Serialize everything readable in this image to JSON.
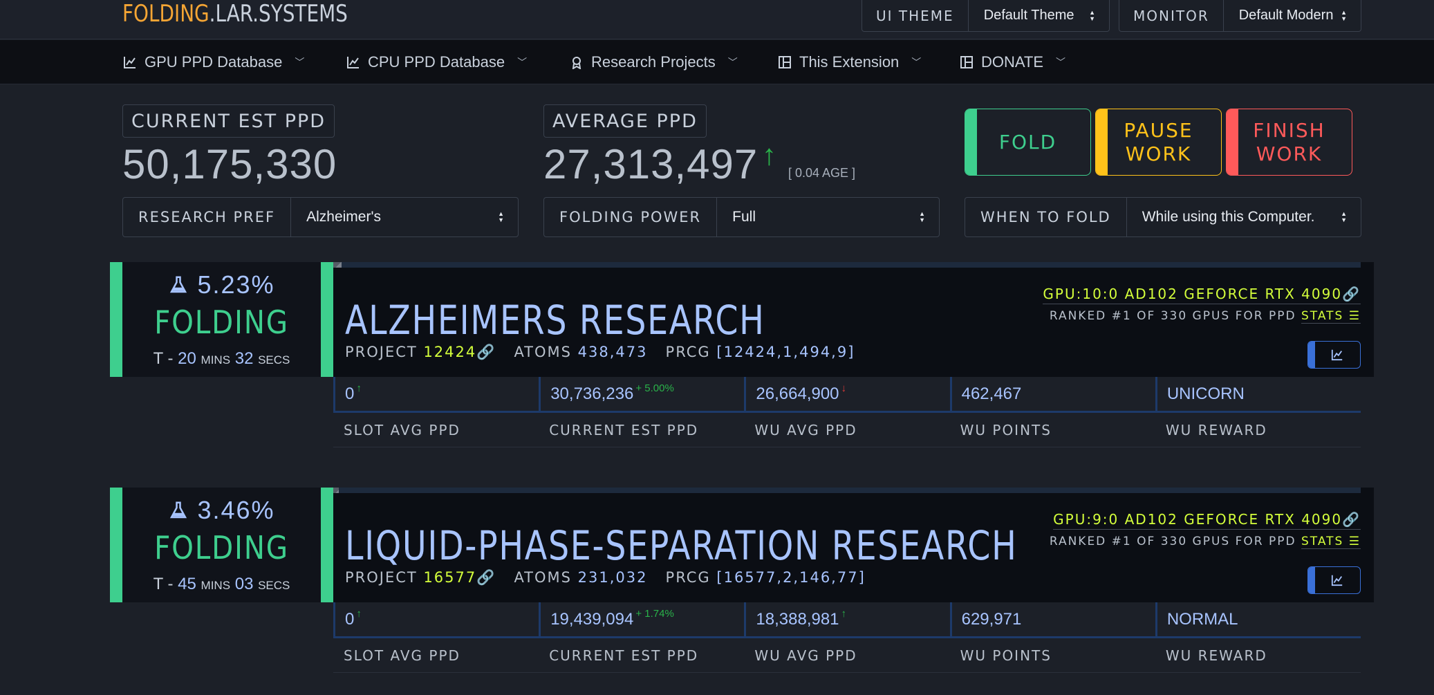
{
  "brand": {
    "part1": "FOLDING",
    "part2": ".LAR.SYSTEMS"
  },
  "top": {
    "theme_label": "UI THEME",
    "theme_value": "Default Theme",
    "monitor_label": "MONITOR",
    "monitor_value": "Default Modern"
  },
  "nav": [
    {
      "label": "GPU PPD Database",
      "icon": "chart-line-icon"
    },
    {
      "label": "CPU PPD Database",
      "icon": "chart-line-icon"
    },
    {
      "label": "Research Projects",
      "icon": "badge-icon"
    },
    {
      "label": "This Extension",
      "icon": "layout-icon"
    },
    {
      "label": "DONATE",
      "icon": "layout-icon"
    }
  ],
  "stats": {
    "current_label": "CURRENT EST PPD",
    "current_value": "50,175,330",
    "average_label": "AVERAGE PPD",
    "average_value": "27,313,497",
    "average_age": "[ 0.04 AGE ]"
  },
  "actions": {
    "fold": "FOLD",
    "pause": "PAUSE WORK",
    "finish": "FINISH WORK"
  },
  "prefs": {
    "research_label": "RESEARCH PREF",
    "research_value": "Alzheimer's",
    "power_label": "FOLDING POWER",
    "power_value": "Full",
    "when_label": "WHEN TO FOLD",
    "when_value": "While using this Computer."
  },
  "colors": {
    "fold": "#3ecf8e",
    "pause": "#ffc21a",
    "finish": "#ff5a5a",
    "accent": "#a8c4ff",
    "lime": "#d4ff3b",
    "brand": "#f5a534"
  },
  "slots": [
    {
      "progress": 0.0523,
      "percent": "5.23%",
      "status": "FOLDING",
      "eta_prefix": "T - ",
      "eta_mins": "20",
      "mins_label": "MINS",
      "eta_secs": "32",
      "secs_label": "SECS",
      "title": "ALZHEIMERS RESEARCH",
      "project_label": "PROJECT",
      "project": "12424",
      "atoms_label": "ATOMS",
      "atoms": "438,473",
      "prcg_label": "PRCG",
      "prcg": "[12424,1,494,9]",
      "gpu": "GPU:10:0 AD102 GEFORCE RTX 4090",
      "rank": "RANKED #1 OF 330 GPUS FOR PPD",
      "stats_link": "STATS",
      "slot_avg": "0",
      "cur_est": "30,736,236",
      "cur_est_delta": "+ 5.00%",
      "wu_avg": "26,664,900",
      "wu_points": "462,467",
      "wu_reward": "UNICORN",
      "wu_avg_trend": "down"
    },
    {
      "progress": 0.0346,
      "percent": "3.46%",
      "status": "FOLDING",
      "eta_prefix": "T - ",
      "eta_mins": "45",
      "mins_label": "MINS",
      "eta_secs": "03",
      "secs_label": "SECS",
      "title": "LIQUID-PHASE-SEPARATION RESEARCH",
      "project_label": "PROJECT",
      "project": "16577",
      "atoms_label": "ATOMS",
      "atoms": "231,032",
      "prcg_label": "PRCG",
      "prcg": "[16577,2,146,77]",
      "gpu": "GPU:9:0 AD102 GEFORCE RTX 4090",
      "rank": "RANKED #1 OF 330 GPUS FOR PPD",
      "stats_link": "STATS",
      "slot_avg": "0",
      "cur_est": "19,439,094",
      "cur_est_delta": "+ 1.74%",
      "wu_avg": "18,388,981",
      "wu_points": "629,971",
      "wu_reward": "NORMAL",
      "wu_avg_trend": "up"
    }
  ],
  "column_heads": [
    "SLOT AVG PPD",
    "CURRENT EST PPD",
    "WU AVG PPD",
    "WU POINTS",
    "WU REWARD"
  ]
}
